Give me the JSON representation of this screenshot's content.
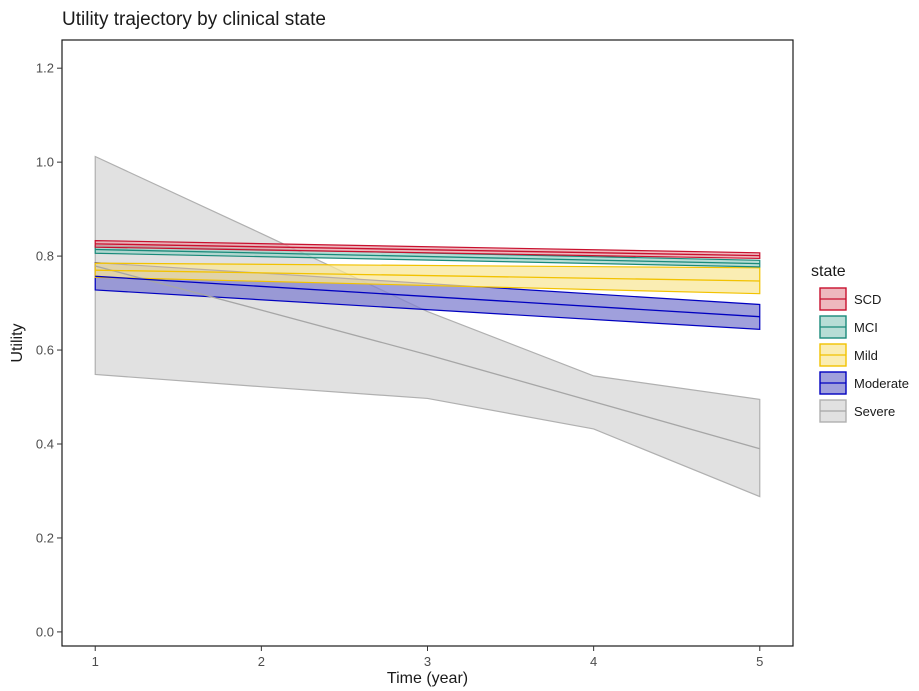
{
  "chart_data": {
    "type": "line",
    "title": "Utility trajectory by clinical state",
    "xlabel": "Time (year)",
    "ylabel": "Utility",
    "xlim": [
      0.8,
      5.2
    ],
    "ylim": [
      -0.03,
      1.26
    ],
    "x_ticks": [
      1,
      2,
      3,
      4,
      5
    ],
    "x_tick_labels": [
      "1",
      "2",
      "3",
      "4",
      "5"
    ],
    "y_ticks": [
      0.0,
      0.2,
      0.4,
      0.6,
      0.8,
      1.0,
      1.2
    ],
    "y_tick_labels": [
      "0.0",
      "0.2",
      "0.4",
      "0.6",
      "0.8",
      "1.0",
      "1.2"
    ],
    "grid": false,
    "legend": {
      "title": "state",
      "position": "right"
    },
    "series": [
      {
        "name": "SCD",
        "color": "#c8102e",
        "fill": "#e8a0a8",
        "x": [
          1,
          5
        ],
        "mean": [
          0.826,
          0.801
        ],
        "lower": [
          0.819,
          0.795
        ],
        "upper": [
          0.833,
          0.807
        ]
      },
      {
        "name": "MCI",
        "color": "#1a8a7a",
        "fill": "#9fd2c8",
        "x": [
          1,
          5
        ],
        "mean": [
          0.814,
          0.784
        ],
        "lower": [
          0.806,
          0.777
        ],
        "upper": [
          0.822,
          0.791
        ]
      },
      {
        "name": "Mild",
        "color": "#f2c200",
        "fill": "#f8e79a",
        "x": [
          1,
          5
        ],
        "mean": [
          0.77,
          0.747
        ],
        "lower": [
          0.755,
          0.72
        ],
        "upper": [
          0.785,
          0.775
        ]
      },
      {
        "name": "Moderate",
        "color": "#0000c0",
        "fill": "#8080d0",
        "x": [
          1,
          5
        ],
        "mean": [
          0.757,
          0.671
        ],
        "lower": [
          0.728,
          0.644
        ],
        "upper": [
          0.786,
          0.697
        ]
      },
      {
        "name": "Severe",
        "color": "#a6a6a6",
        "fill": "#dcdcdc",
        "x": [
          1,
          2,
          3,
          4,
          5
        ],
        "mean": [
          0.779,
          0.685,
          0.59,
          0.49,
          0.39
        ],
        "lower": [
          0.548,
          0.522,
          0.497,
          0.432,
          0.288
        ],
        "upper": [
          1.012,
          0.848,
          0.682,
          0.545,
          0.495
        ]
      }
    ]
  }
}
